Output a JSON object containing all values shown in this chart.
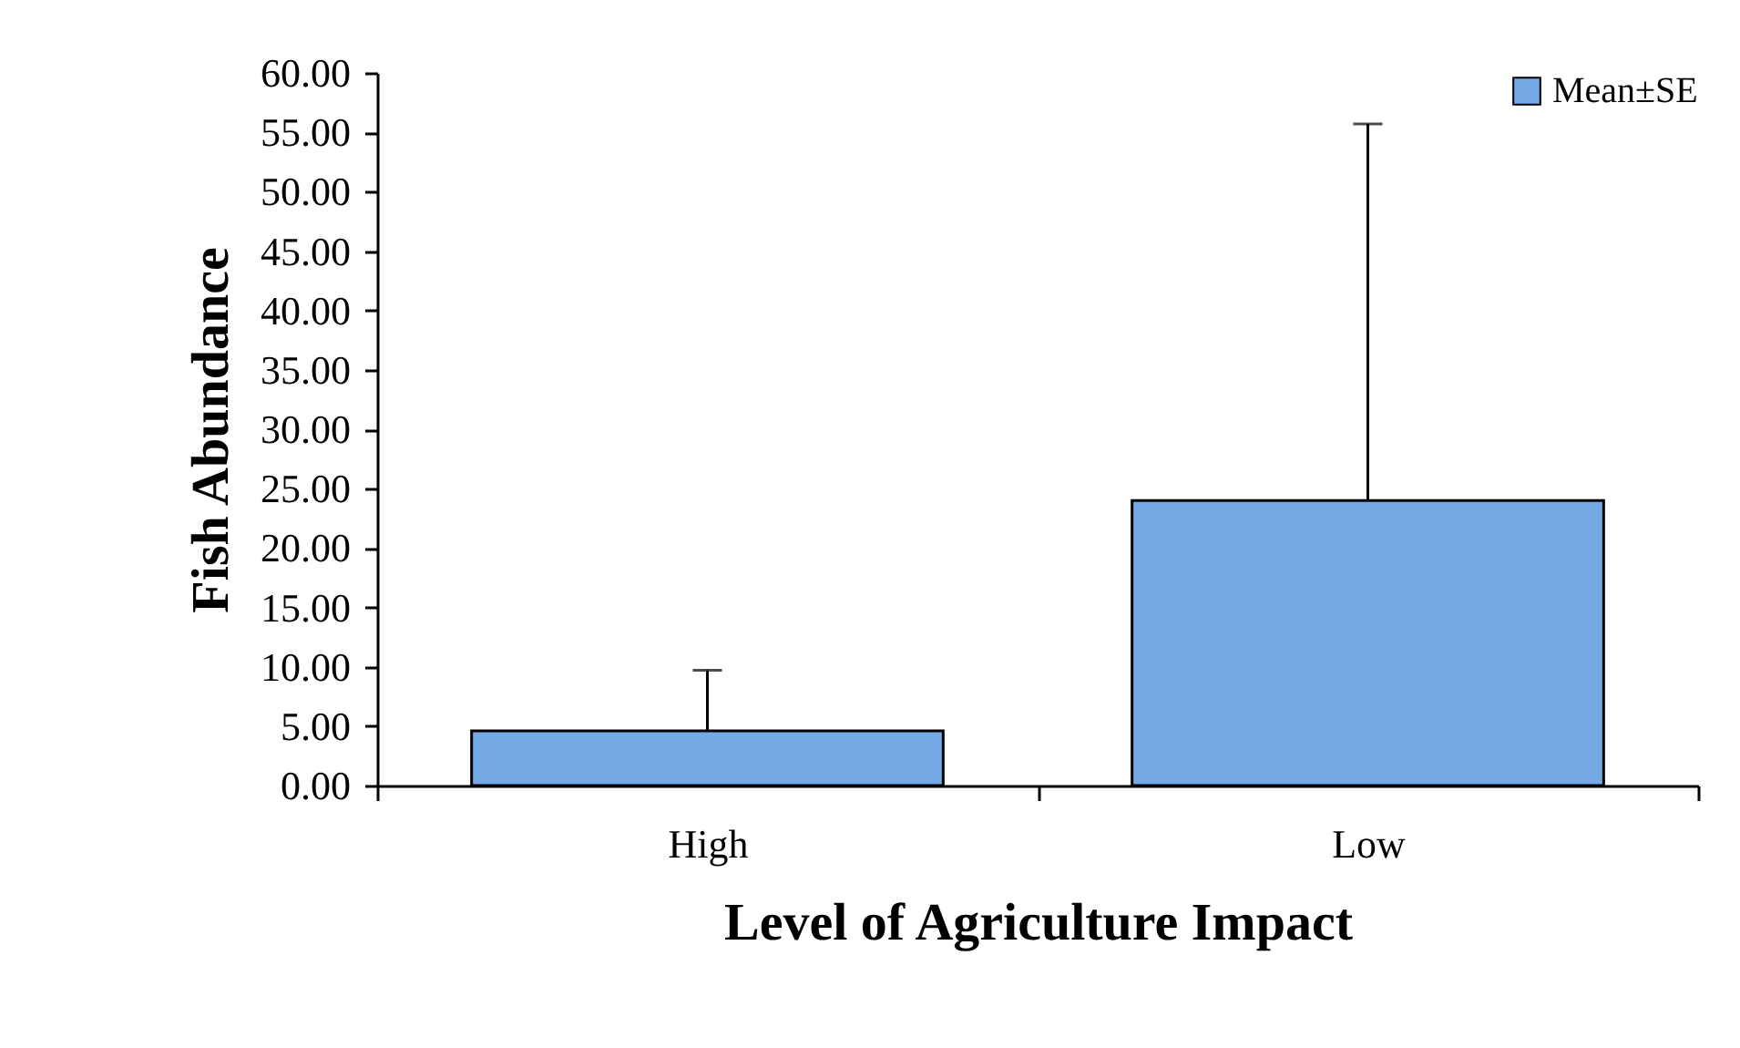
{
  "chart_data": {
    "type": "bar",
    "xlabel": "Level of Agriculture Impact",
    "ylabel": "Fish Abundance",
    "categories": [
      "High",
      "Low"
    ],
    "series": [
      {
        "name": "Mean±SE",
        "color": "#74a9e6",
        "values": [
          4.6,
          24.0
        ],
        "errors": [
          [
            4.6,
            9.7
          ],
          [
            24.0,
            55.7
          ]
        ]
      }
    ],
    "ylim": [
      0,
      60
    ],
    "yticks": [
      {
        "value": 0,
        "label": "0.00"
      },
      {
        "value": 5,
        "label": "5.00"
      },
      {
        "value": 10,
        "label": "10.00"
      },
      {
        "value": 15,
        "label": "15.00"
      },
      {
        "value": 20,
        "label": "20.00"
      },
      {
        "value": 25,
        "label": "25.00"
      },
      {
        "value": 30,
        "label": "30.00"
      },
      {
        "value": 35,
        "label": "35.00"
      },
      {
        "value": 40,
        "label": "40.00"
      },
      {
        "value": 45,
        "label": "45.00"
      },
      {
        "value": 50,
        "label": "50.00"
      },
      {
        "value": 55,
        "label": "55.00"
      },
      {
        "value": 60,
        "label": "60.00"
      }
    ],
    "grid": false,
    "legend": "top right"
  }
}
